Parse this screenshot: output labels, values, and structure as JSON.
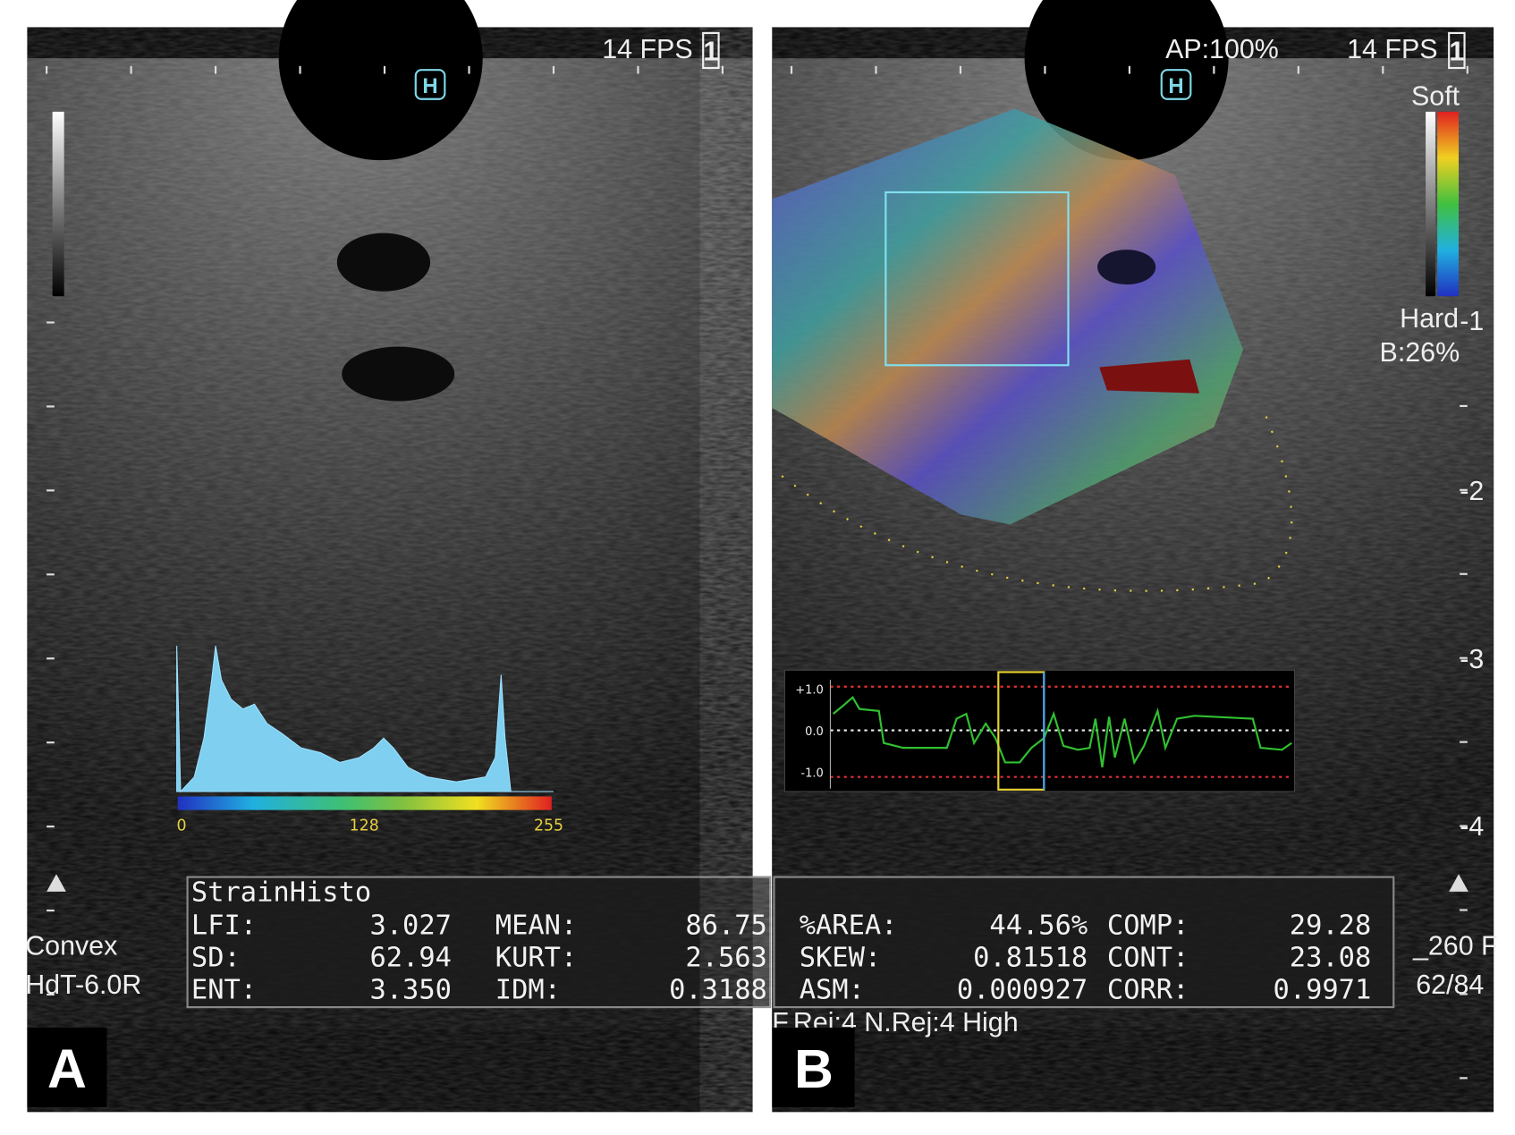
{
  "panels": [
    {
      "label": "A",
      "fps": "14 FPS",
      "frame": "1",
      "marker": "H",
      "probe": [
        "Convex",
        "HdT-6.0R"
      ],
      "histogram_axis": [
        "0",
        "128",
        "255"
      ],
      "stats_title": "StrainHisto",
      "stats": [
        [
          "LFI:",
          "3.027",
          "MEAN:",
          "86.75"
        ],
        [
          "SD:",
          "62.94",
          "KURT:",
          "2.563"
        ],
        [
          "ENT:",
          "3.350",
          "IDM:",
          "0.3188"
        ]
      ]
    },
    {
      "label": "B",
      "ap": "AP:100%",
      "fps": "14 FPS",
      "frame": "1",
      "marker": "H",
      "scale_top": "Soft",
      "scale_bottom": "Hard",
      "b_value": "B:26%",
      "depth": [
        "-1",
        "-2",
        "-3",
        "-4"
      ],
      "graph_axis": [
        "+1.0",
        "0.0",
        "-1.0"
      ],
      "stats": [
        [
          "%AREA:",
          "44.56%",
          "COMP:",
          "29.28"
        ],
        [
          "SKEW:",
          "0.81518",
          "CONT:",
          "23.08"
        ],
        [
          "ASM:",
          "0.000927",
          "CORR:",
          "0.9971"
        ]
      ],
      "right_info": [
        "_260 F",
        "62/84"
      ],
      "footer": "F.Rej:4 N.Rej:4  High"
    }
  ]
}
